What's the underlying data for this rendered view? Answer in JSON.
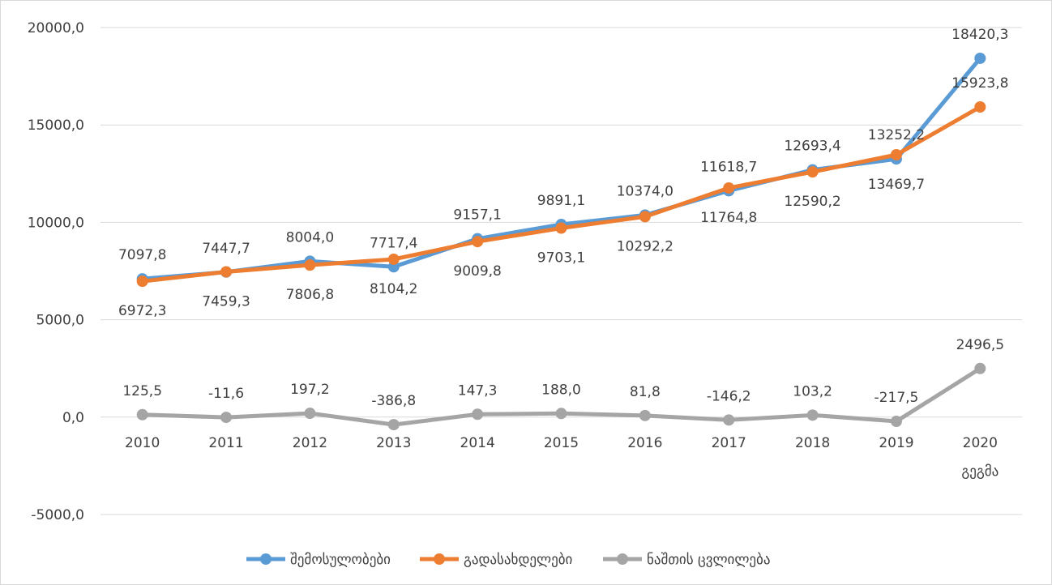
{
  "chart_data": {
    "type": "line",
    "categories": [
      "2010",
      "2011",
      "2012",
      "2013",
      "2014",
      "2015",
      "2016",
      "2017",
      "2018",
      "2019",
      "2020"
    ],
    "category_sublabels": [
      "",
      "",
      "",
      "",
      "",
      "",
      "",
      "",
      "",
      "",
      "გეგმა"
    ],
    "title": "",
    "xlabel": "",
    "ylabel": "",
    "ylim": [
      -5000,
      20000
    ],
    "yticks": [
      -5000,
      0,
      5000,
      10000,
      15000,
      20000
    ],
    "ytick_labels": [
      "-5000,0",
      "0,0",
      "5000,0",
      "10000,0",
      "15000,0",
      "20000,0"
    ],
    "grid": true,
    "legend_position": "bottom",
    "series": [
      {
        "name": "შემოსულობები",
        "color": "#5b9bd5",
        "values": [
          7097.8,
          7447.7,
          8004.0,
          7717.4,
          9157.1,
          9891.1,
          10374.0,
          11618.7,
          12693.4,
          13252.2,
          18420.3
        ],
        "labels": [
          "7097,8",
          "7447,7",
          "8004,0",
          "7717,4",
          "9157,1",
          "9891,1",
          "10374,0",
          "11618,7",
          "12693,4",
          "13252,2",
          "18420,3"
        ],
        "label_pos": [
          "above",
          "above",
          "above",
          "above",
          "above",
          "above",
          "above",
          "above",
          "above",
          "above",
          "above"
        ]
      },
      {
        "name": "გადასახდელები",
        "color": "#ed7d31",
        "values": [
          6972.3,
          7459.3,
          7806.8,
          8104.2,
          9009.8,
          9703.1,
          10292.2,
          11764.8,
          12590.2,
          13469.7,
          15923.8
        ],
        "labels": [
          "6972,3",
          "7459,3",
          "7806,8",
          "8104,2",
          "9009,8",
          "9703,1",
          "10292,2",
          "11764,8",
          "12590,2",
          "13469,7",
          "15923,8"
        ],
        "label_pos": [
          "below",
          "below",
          "below",
          "below",
          "below",
          "below",
          "below",
          "below",
          "below",
          "below",
          "above"
        ]
      },
      {
        "name": "ნაშთის ცვლილება",
        "color": "#a5a5a5",
        "values": [
          125.5,
          -11.6,
          197.2,
          -386.8,
          147.3,
          188.0,
          81.8,
          -146.2,
          103.2,
          -217.5,
          2496.5
        ],
        "labels": [
          "125,5",
          "-11,6",
          "197,2",
          "-386,8",
          "147,3",
          "188,0",
          "81,8",
          "-146,2",
          "103,2",
          "-217,5",
          "2496,5"
        ],
        "label_pos": [
          "above",
          "above",
          "above",
          "above",
          "above",
          "above",
          "above",
          "above",
          "above",
          "above",
          "above"
        ]
      }
    ]
  }
}
